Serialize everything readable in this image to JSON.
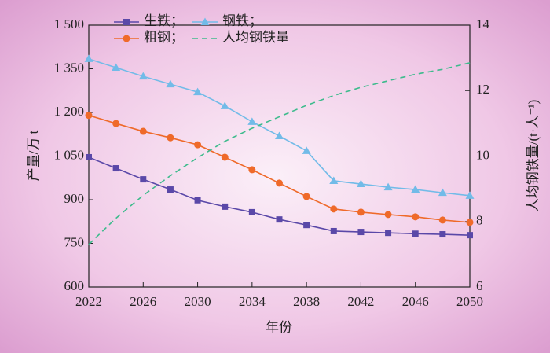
{
  "chart_data": {
    "type": "line",
    "x": [
      2022,
      2024,
      2026,
      2028,
      2030,
      2032,
      2034,
      2036,
      2038,
      2040,
      2042,
      2044,
      2046,
      2048,
      2050
    ],
    "xlim": [
      2022,
      2050
    ],
    "xticks": [
      2022,
      2026,
      2030,
      2034,
      2038,
      2042,
      2046,
      2050
    ],
    "ylim": [
      600,
      1500
    ],
    "yticks": [
      600,
      750,
      900,
      {
        "value": 1050,
        "label": "1 050"
      },
      {
        "value": 1200,
        "label": "1 200"
      },
      {
        "value": 1350,
        "label": "1 350"
      },
      {
        "value": 1500,
        "label": "1 500"
      }
    ],
    "y2lim": [
      6,
      14
    ],
    "y2ticks": [
      6,
      8,
      10,
      12,
      14
    ],
    "xlabel": "年份",
    "ylabel": "产量/万 t",
    "y2label": "人均钢铁量/(t·人⁻¹)",
    "series": [
      {
        "name": "生铁；",
        "color": "#5a48a8",
        "marker": "square",
        "values": [
          1046,
          1008,
          970,
          935,
          898,
          876,
          857,
          832,
          813,
          792,
          789,
          786,
          783,
          781,
          778
        ]
      },
      {
        "name": "粗钢；",
        "color": "#ef6a2a",
        "marker": "circle",
        "values": [
          1190,
          1162,
          1135,
          1113,
          1089,
          1046,
          1003,
          957,
          911,
          868,
          857,
          849,
          841,
          830,
          822
        ]
      },
      {
        "name": "钢铁；",
        "color": "#72bbe8",
        "marker": "triangle",
        "values": [
          1384,
          1354,
          1324,
          1297,
          1270,
          1222,
          1168,
          1119,
          1068,
          965,
          954,
          943,
          935,
          924,
          914
        ]
      },
      {
        "name": "人均钢铁量",
        "color": "#3dbb8c",
        "dashed": true,
        "axis": "y2",
        "values": [
          7.3,
          8.1,
          8.8,
          9.4,
          9.95,
          10.45,
          10.85,
          11.2,
          11.55,
          11.85,
          12.1,
          12.3,
          12.5,
          12.65,
          12.85
        ]
      }
    ]
  }
}
